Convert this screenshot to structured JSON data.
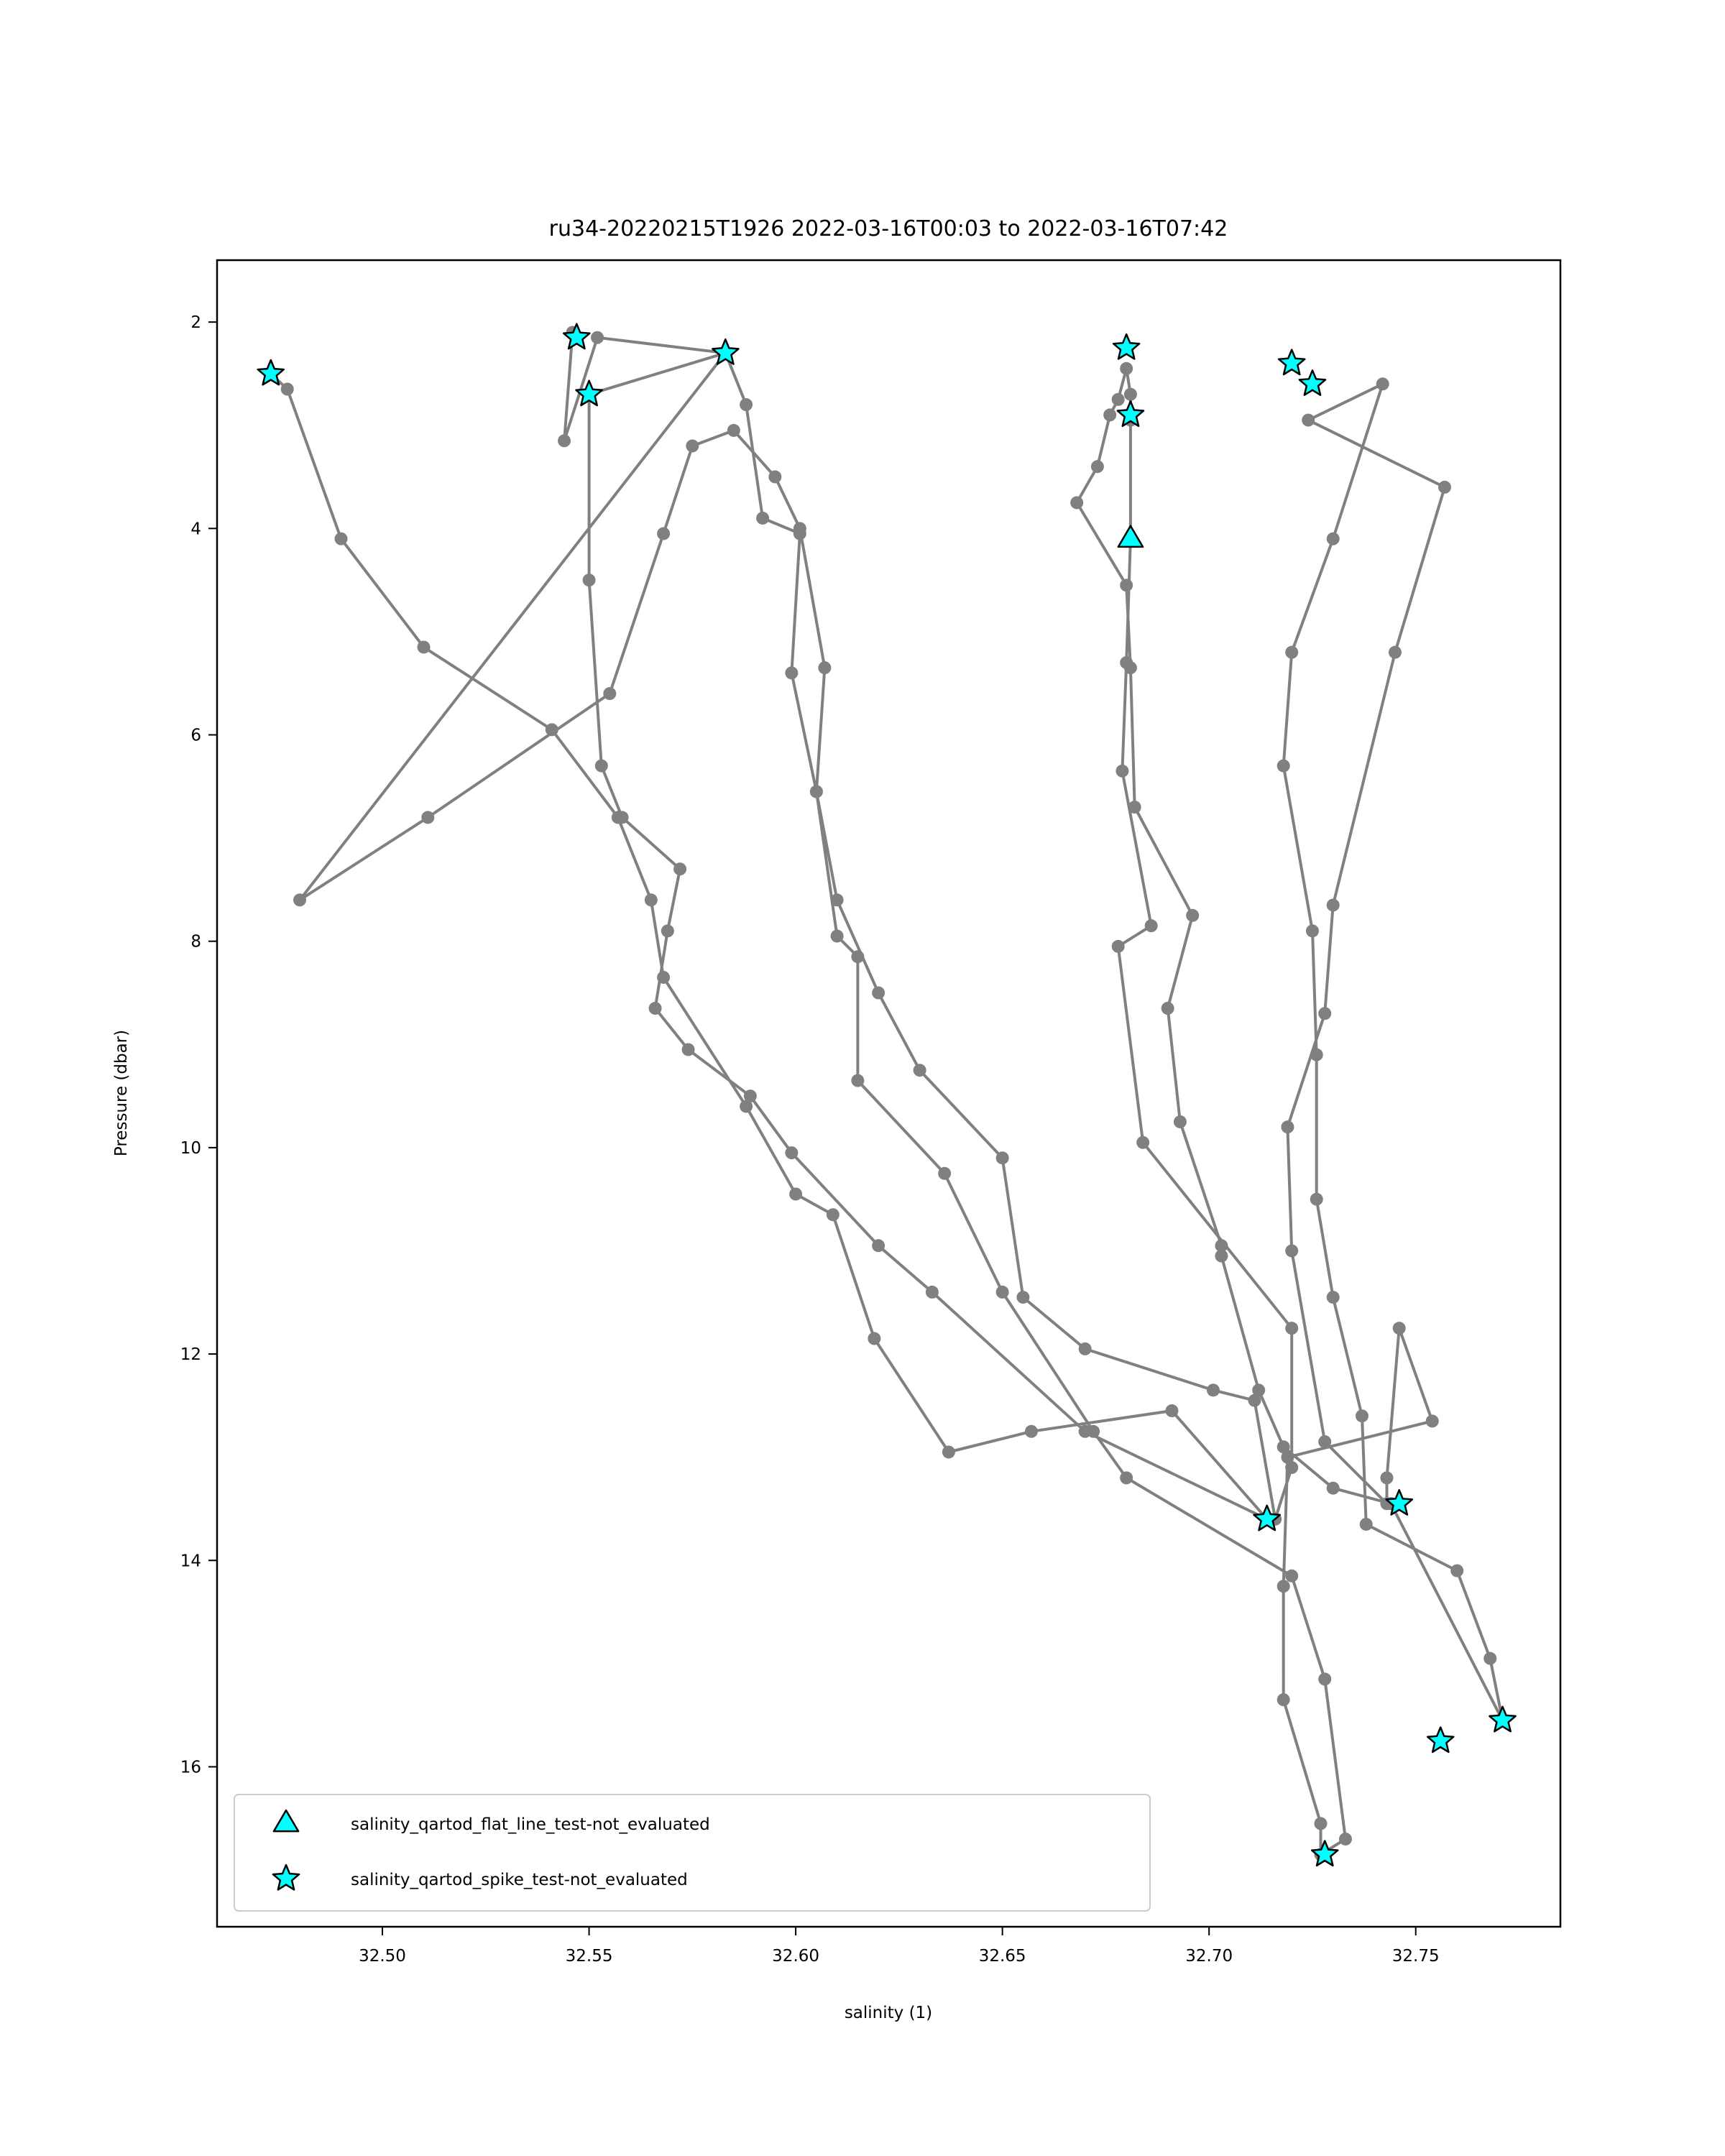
{
  "chart_data": {
    "type": "scatter",
    "title": "ru34-20220215T1926 2022-03-16T00:03 to 2022-03-16T07:42",
    "xlabel": "salinity (1)",
    "ylabel": "Pressure (dbar)",
    "xlim": [
      32.46,
      32.785
    ],
    "ylim": [
      17.55,
      1.4
    ],
    "y_inverted": true,
    "xticks": [
      "32.50",
      "32.55",
      "32.60",
      "32.65",
      "32.70",
      "32.75"
    ],
    "xtick_values": [
      32.5,
      32.55,
      32.6,
      32.65,
      32.7,
      32.75
    ],
    "yticks": [
      "2",
      "4",
      "6",
      "8",
      "10",
      "12",
      "14",
      "16"
    ],
    "ytick_values": [
      2,
      4,
      6,
      8,
      10,
      12,
      14,
      16
    ],
    "grid": false,
    "legend_position": "lower-left",
    "profile_color": "#808080",
    "marker_fill": "#00ffff",
    "marker_edge": "#000000",
    "profile": {
      "x": [
        32.473,
        32.477,
        32.49,
        32.51,
        32.541,
        32.557,
        32.565,
        32.568,
        32.588,
        32.6,
        32.609,
        32.619,
        32.637,
        32.657,
        32.691,
        32.714,
        32.67,
        32.633,
        32.62,
        32.599,
        32.589,
        32.574,
        32.566,
        32.569,
        32.572,
        32.558,
        32.553,
        32.55,
        32.55,
        32.583,
        32.588,
        32.592,
        32.601,
        32.599,
        32.605,
        32.61,
        32.615,
        32.615,
        32.636,
        32.65,
        32.672,
        32.68,
        32.72,
        32.728,
        32.733,
        32.727,
        32.727,
        32.718,
        32.718,
        32.719,
        32.754,
        32.746,
        32.743,
        32.743,
        32.728,
        32.72,
        32.719,
        32.728,
        32.73,
        32.745,
        32.757,
        32.724,
        32.742,
        32.73,
        32.72,
        32.718,
        32.725,
        32.726,
        32.726,
        32.73,
        32.737,
        32.738,
        32.76,
        32.768,
        32.771,
        32.744,
        32.73,
        32.718,
        32.712,
        32.703,
        32.703,
        32.693,
        32.69,
        32.696,
        32.682,
        32.681,
        32.68,
        32.668,
        32.673,
        32.676,
        32.678,
        32.68,
        32.681,
        32.681,
        32.681,
        32.68,
        32.679,
        32.686,
        32.678,
        32.684,
        32.72,
        32.72,
        32.716,
        32.711,
        32.701,
        32.67,
        32.655,
        32.65,
        32.63,
        32.62,
        32.61,
        32.605,
        32.607,
        32.601,
        32.595,
        32.585,
        32.575,
        32.568,
        32.555,
        32.511,
        32.48,
        32.583,
        32.552,
        32.544,
        32.546
      ],
      "y": [
        2.5,
        2.65,
        4.1,
        5.15,
        5.95,
        6.8,
        7.6,
        8.35,
        9.6,
        10.45,
        10.65,
        11.85,
        12.95,
        12.75,
        12.55,
        13.6,
        12.75,
        11.4,
        10.95,
        10.05,
        9.5,
        9.05,
        8.65,
        7.9,
        7.3,
        6.8,
        6.3,
        4.5,
        2.7,
        2.3,
        2.8,
        3.9,
        4.05,
        5.4,
        6.55,
        7.95,
        8.15,
        9.35,
        10.25,
        11.4,
        12.75,
        13.2,
        14.15,
        15.15,
        16.7,
        16.85,
        16.55,
        15.35,
        14.25,
        13.0,
        12.65,
        11.75,
        13.2,
        13.45,
        12.85,
        11.0,
        9.8,
        8.7,
        7.65,
        5.2,
        3.6,
        2.95,
        2.6,
        4.1,
        5.2,
        6.3,
        7.9,
        9.1,
        10.5,
        11.45,
        12.6,
        13.65,
        14.1,
        14.95,
        15.55,
        13.45,
        13.3,
        12.9,
        12.35,
        11.05,
        10.95,
        9.75,
        8.65,
        7.75,
        6.7,
        5.35,
        4.55,
        3.75,
        3.4,
        2.9,
        2.75,
        2.45,
        2.7,
        2.95,
        4.1,
        5.3,
        6.35,
        7.85,
        8.05,
        9.95,
        11.75,
        13.1,
        13.6,
        12.45,
        12.35,
        11.95,
        11.45,
        10.1,
        9.25,
        8.5,
        7.6,
        6.55,
        5.35,
        4.0,
        3.5,
        3.05,
        3.2,
        4.05,
        5.6,
        6.8,
        7.6,
        2.3,
        2.15,
        3.15,
        2.1
      ]
    },
    "series": [
      {
        "name": "salinity_qartod_flat_line_test-not_evaluated",
        "marker": "triangle",
        "x": [
          32.681
        ],
        "y": [
          4.1
        ]
      },
      {
        "name": "salinity_qartod_spike_test-not_evaluated",
        "marker": "star",
        "x": [
          32.473,
          32.547,
          32.55,
          32.583,
          32.68,
          32.681,
          32.72,
          32.725,
          32.714,
          32.746,
          32.756,
          32.771,
          32.728
        ],
        "y": [
          2.5,
          2.15,
          2.7,
          2.3,
          2.25,
          2.9,
          2.4,
          2.6,
          13.6,
          13.45,
          15.75,
          15.55,
          16.85
        ]
      }
    ]
  }
}
